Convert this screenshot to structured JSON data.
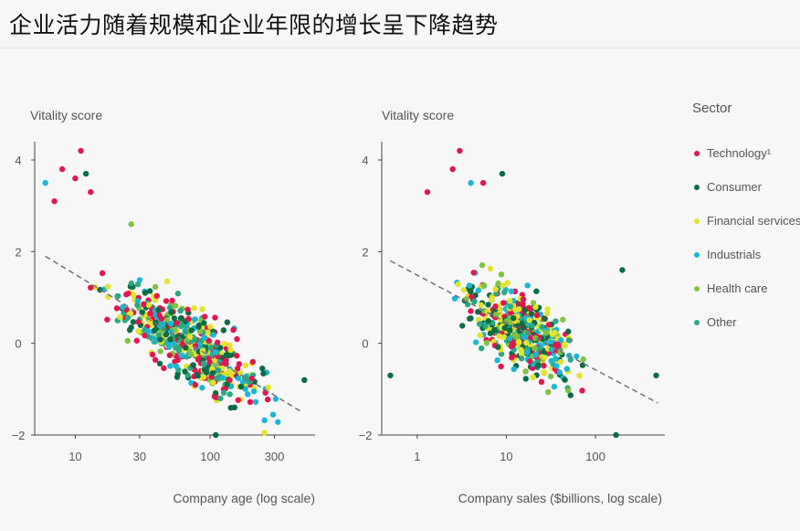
{
  "page_title": "企业活力随着规模和企业年限的增长呈下降趋势",
  "legend": {
    "title": "Sector",
    "items": [
      {
        "label": "Technology¹",
        "color": "#e0174f"
      },
      {
        "label": "Consumer",
        "color": "#0b6b45"
      },
      {
        "label": "Financial services",
        "color": "#e3e22e"
      },
      {
        "label": "Industrials",
        "color": "#1bb6d3"
      },
      {
        "label": "Health care",
        "color": "#7fc241"
      },
      {
        "label": "Other",
        "color": "#2ba882"
      }
    ]
  },
  "chart_data": [
    {
      "type": "scatter",
      "title": "",
      "ylabel": "Vitality score",
      "xlabel": "Company age (log scale)",
      "x_scale": "log",
      "xlim": [
        5,
        600
      ],
      "ylim": [
        -2,
        4.3
      ],
      "x_ticks": [
        {
          "value": 10,
          "label": "10"
        },
        {
          "value": 30,
          "label": "30"
        },
        {
          "value": 100,
          "label": "100"
        },
        {
          "value": 300,
          "label": "300"
        }
      ],
      "y_ticks": [
        {
          "value": 4,
          "label": "4"
        },
        {
          "value": 2,
          "label": "2"
        },
        {
          "value": 0,
          "label": "0"
        },
        {
          "value": -2,
          "label": "−2"
        }
      ],
      "trend_line": {
        "x": [
          6,
          480
        ],
        "y": [
          1.9,
          -1.5
        ]
      },
      "notable_points": [
        {
          "x": 6,
          "y": 3.5,
          "series": "Industrials"
        },
        {
          "x": 7,
          "y": 3.1,
          "series": "Technology¹"
        },
        {
          "x": 8,
          "y": 3.8,
          "series": "Technology¹"
        },
        {
          "x": 10,
          "y": 3.6,
          "series": "Technology¹"
        },
        {
          "x": 11,
          "y": 4.2,
          "series": "Technology¹"
        },
        {
          "x": 12,
          "y": 3.7,
          "series": "Consumer"
        },
        {
          "x": 13,
          "y": 3.3,
          "series": "Technology¹"
        },
        {
          "x": 26,
          "y": 2.6,
          "series": "Health care"
        },
        {
          "x": 110,
          "y": -2.0,
          "series": "Consumer"
        },
        {
          "x": 500,
          "y": -0.8,
          "series": "Consumer"
        }
      ],
      "series_summary": [
        {
          "name": "Technology¹",
          "x_range": [
            7,
            200
          ],
          "y_range": [
            -1.9,
            4.2
          ]
        },
        {
          "name": "Consumer",
          "x_range": [
            9,
            500
          ],
          "y_range": [
            -2.0,
            3.7
          ]
        },
        {
          "name": "Financial services",
          "x_range": [
            9,
            300
          ],
          "y_range": [
            -1.8,
            2.6
          ]
        },
        {
          "name": "Industrials",
          "x_range": [
            6,
            300
          ],
          "y_range": [
            -1.6,
            3.5
          ]
        },
        {
          "name": "Health care",
          "x_range": [
            10,
            350
          ],
          "y_range": [
            -1.5,
            2.6
          ]
        },
        {
          "name": "Other",
          "x_range": [
            8,
            350
          ],
          "y_range": [
            -1.7,
            2.2
          ]
        }
      ]
    },
    {
      "type": "scatter",
      "title": "",
      "ylabel": "Vitality score",
      "xlabel": "Company sales ($billions, log scale)",
      "x_scale": "log",
      "xlim": [
        0.4,
        600
      ],
      "ylim": [
        -2,
        4.3
      ],
      "x_ticks": [
        {
          "value": 1,
          "label": "1"
        },
        {
          "value": 10,
          "label": "10"
        },
        {
          "value": 100,
          "label": "100"
        }
      ],
      "y_ticks": [
        {
          "value": 4,
          "label": "4"
        },
        {
          "value": 2,
          "label": "2"
        },
        {
          "value": 0,
          "label": "0"
        },
        {
          "value": -2,
          "label": "−2"
        }
      ],
      "trend_line": {
        "x": [
          0.5,
          500
        ],
        "y": [
          1.8,
          -1.3
        ]
      },
      "notable_points": [
        {
          "x": 0.5,
          "y": -0.7,
          "series": "Consumer"
        },
        {
          "x": 1.3,
          "y": 3.3,
          "series": "Technology¹"
        },
        {
          "x": 2.5,
          "y": 3.8,
          "series": "Technology¹"
        },
        {
          "x": 3,
          "y": 4.2,
          "series": "Technology¹"
        },
        {
          "x": 4,
          "y": 3.5,
          "series": "Industrials"
        },
        {
          "x": 5.5,
          "y": 3.5,
          "series": "Technology¹"
        },
        {
          "x": 9,
          "y": 3.7,
          "series": "Consumer"
        },
        {
          "x": 170,
          "y": -2.0,
          "series": "Consumer"
        },
        {
          "x": 200,
          "y": 1.6,
          "series": "Consumer"
        },
        {
          "x": 480,
          "y": -0.7,
          "series": "Consumer"
        }
      ],
      "series_summary": [
        {
          "name": "Technology¹",
          "x_range": [
            1.3,
            170
          ],
          "y_range": [
            -2.0,
            4.2
          ]
        },
        {
          "name": "Consumer",
          "x_range": [
            0.5,
            480
          ],
          "y_range": [
            -2.0,
            3.7
          ]
        },
        {
          "name": "Financial services",
          "x_range": [
            1.5,
            200
          ],
          "y_range": [
            -1.8,
            2.6
          ]
        },
        {
          "name": "Industrials",
          "x_range": [
            1.5,
            200
          ],
          "y_range": [
            -1.6,
            3.5
          ]
        },
        {
          "name": "Health care",
          "x_range": [
            1.2,
            200
          ],
          "y_range": [
            -1.5,
            2.4
          ]
        },
        {
          "name": "Other",
          "x_range": [
            1.5,
            200
          ],
          "y_range": [
            -1.7,
            2.2
          ]
        }
      ]
    }
  ]
}
